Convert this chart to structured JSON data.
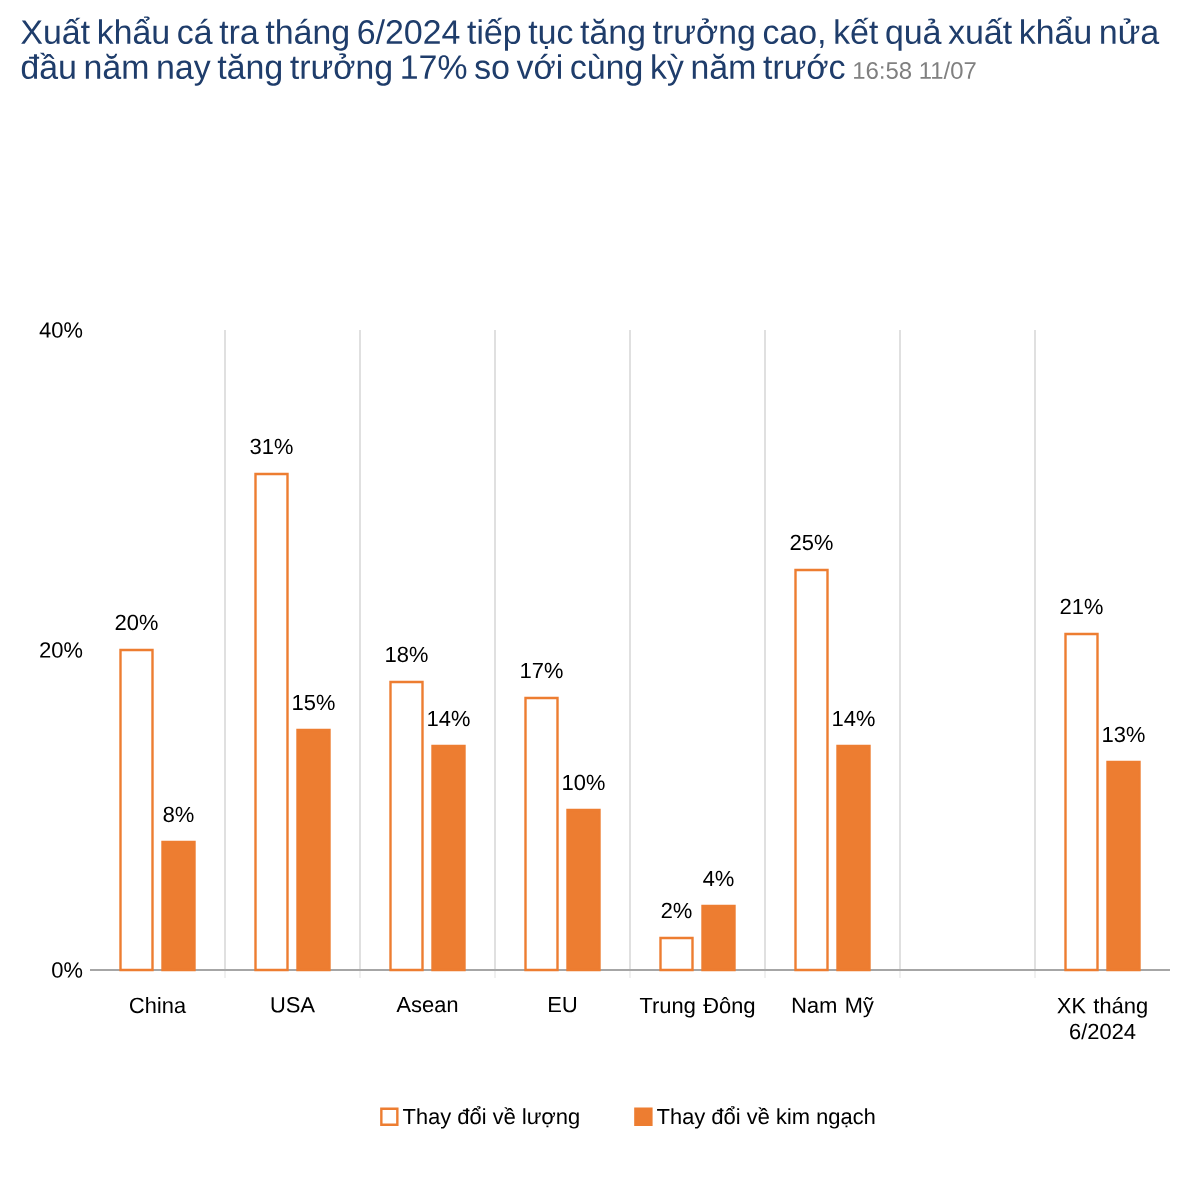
{
  "chart_data": {
    "type": "bar",
    "title": "Xuất khẩu cá tra tháng 6/2024 tiếp tục tăng trưởng cao, kết quả xuất khẩu nửa đầu năm nay tăng trưởng 17% so với cùng kỳ năm trước",
    "annotations": [
      "16:58 11/07"
    ],
    "categories": [
      "China",
      "USA",
      "Asean",
      "EU",
      "Trung Đông",
      "Nam Mỹ",
      null,
      "XK tháng 6/2024"
    ],
    "series": [
      {
        "name": "Thay đổi về lượng",
        "color": "#ed7d31",
        "values": [
          20,
          31,
          18,
          17,
          2,
          25,
          null,
          21
        ],
        "value_labels": [
          "20%",
          "31%",
          "18%",
          "17%",
          "2%",
          "25%",
          null,
          "21%"
        ]
      },
      {
        "name": "Thay đổi về kim ngạch",
        "color": "#ed7d31",
        "values": [
          8,
          15,
          14,
          10,
          4,
          14,
          null,
          13
        ],
        "value_labels": [
          "8%",
          "15%",
          "14%",
          "10%",
          "4%",
          "14%",
          null,
          "13%"
        ]
      }
    ],
    "ylim": [
      0,
      40
    ],
    "yticks": [
      {
        "value": 0,
        "label": "0%"
      },
      {
        "value": 20,
        "label": "20%"
      },
      {
        "value": 40,
        "label": "40%"
      }
    ],
    "grid": "x",
    "legend": "bottom"
  }
}
